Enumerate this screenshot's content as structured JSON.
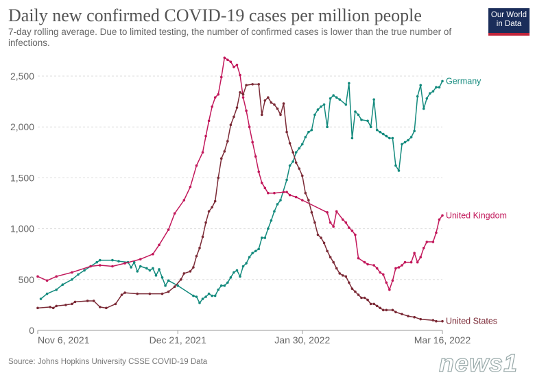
{
  "title": "Daily new confirmed COVID-19 cases per million people",
  "subtitle": "7-day rolling average. Due to limited testing, the number of confirmed cases is lower than the true number of infections.",
  "logo": {
    "line1": "Our World",
    "line2": "in Data"
  },
  "source": "Source: Johns Hopkins University CSSE COVID-19 Data",
  "watermark": "news1",
  "chart_data": {
    "type": "line",
    "title": "Daily new confirmed COVID-19 cases per million people",
    "xlabel": "",
    "ylabel": "",
    "x_unit": "days since Nov 6, 2021",
    "xlim": [
      0,
      130
    ],
    "ylim": [
      0,
      2500
    ],
    "yticks": [
      0,
      500,
      1000,
      1500,
      2000,
      2500
    ],
    "ytick_labels": [
      "0",
      "500",
      "1,000",
      "1,500",
      "2,000",
      "2,500"
    ],
    "xticks": [
      0,
      45,
      85,
      130
    ],
    "xtick_labels": [
      "Nov 6, 2021",
      "Dec 21, 2021",
      "Jan 30, 2022",
      "Mar 16, 2022"
    ],
    "grid": "horizontal dashed",
    "legend": "inline labels at line ends (right)",
    "series": [
      {
        "name": "Germany",
        "color": "#138a7d",
        "x": [
          1,
          3,
          6,
          8,
          11,
          13,
          15,
          17,
          19,
          20,
          24,
          26,
          29,
          30,
          31,
          32,
          33,
          35,
          36,
          37,
          38,
          39,
          40,
          41,
          42,
          45,
          50,
          51,
          52,
          53,
          54,
          55,
          56,
          57,
          58,
          59,
          60,
          61,
          62,
          63,
          64,
          65,
          66,
          67,
          68,
          69,
          70,
          71,
          72,
          73,
          74,
          75,
          76,
          77,
          78,
          80,
          81,
          82,
          83,
          84,
          85,
          86,
          87,
          88,
          89,
          90,
          91,
          92,
          93,
          94,
          95,
          96,
          97,
          99,
          100,
          101,
          102,
          103,
          104,
          106,
          107,
          108,
          109,
          110,
          111,
          112,
          113,
          114,
          115,
          116,
          117,
          118,
          119,
          120,
          121,
          122,
          123,
          124,
          125,
          126,
          127,
          128,
          129,
          130
        ],
        "y": [
          310,
          360,
          400,
          450,
          500,
          550,
          590,
          630,
          670,
          690,
          690,
          680,
          670,
          620,
          670,
          580,
          630,
          610,
          590,
          610,
          540,
          600,
          520,
          440,
          490,
          440,
          340,
          330,
          270,
          310,
          330,
          360,
          340,
          340,
          400,
          440,
          440,
          470,
          520,
          570,
          590,
          530,
          630,
          660,
          720,
          760,
          780,
          800,
          910,
          910,
          1000,
          1080,
          1170,
          1240,
          1280,
          1480,
          1620,
          1660,
          1750,
          1790,
          1830,
          1900,
          1950,
          1970,
          2120,
          2170,
          2200,
          2220,
          2000,
          2280,
          2310,
          2290,
          2270,
          2220,
          2430,
          1890,
          2150,
          2120,
          2070,
          2060,
          2000,
          2270,
          1970,
          1950,
          1930,
          1910,
          1890,
          1890,
          1620,
          1570,
          1830,
          1850,
          1870,
          1900,
          1960,
          2300,
          2410,
          2180,
          2280,
          2330,
          2350,
          2390,
          2390,
          2450
        ]
      },
      {
        "name": "United Kingdom",
        "color": "#c2185b",
        "x": [
          0,
          3,
          6,
          11,
          17,
          20,
          24,
          28,
          33,
          37,
          39,
          42,
          44,
          47,
          49,
          51,
          53,
          54,
          55,
          56,
          57,
          58,
          59,
          60,
          61,
          62,
          63,
          64,
          65,
          66,
          67,
          68,
          69,
          70,
          71,
          72,
          73,
          74,
          76,
          79,
          80,
          81,
          83,
          85,
          93,
          94,
          95,
          96,
          98,
          99,
          100,
          101,
          102,
          103,
          105,
          106,
          108,
          109,
          110,
          111,
          112,
          113,
          114,
          115,
          116,
          117,
          118,
          120,
          121,
          122,
          123,
          124,
          125,
          127,
          128,
          129,
          130
        ],
        "y": [
          530,
          490,
          530,
          570,
          630,
          640,
          630,
          660,
          700,
          750,
          840,
          990,
          1150,
          1280,
          1410,
          1620,
          1750,
          1910,
          2060,
          2200,
          2290,
          2320,
          2490,
          2680,
          2660,
          2640,
          2590,
          2610,
          2510,
          2290,
          2160,
          2000,
          1850,
          1710,
          1560,
          1450,
          1400,
          1350,
          1350,
          1360,
          1360,
          1330,
          1310,
          1280,
          1160,
          1060,
          1020,
          1170,
          1090,
          1060,
          1010,
          980,
          940,
          710,
          670,
          650,
          640,
          610,
          570,
          550,
          470,
          400,
          490,
          610,
          620,
          640,
          670,
          670,
          760,
          670,
          720,
          810,
          870,
          870,
          960,
          1090,
          1130
        ]
      },
      {
        "name": "United States",
        "color": "#7b2a36",
        "x": [
          0,
          4,
          5,
          6,
          9,
          11,
          12,
          16,
          18,
          20,
          22,
          25,
          27,
          28,
          32,
          36,
          40,
          42,
          44,
          46,
          47,
          49,
          50,
          51,
          52,
          53,
          54,
          55,
          56,
          57,
          58,
          59,
          60,
          61,
          62,
          63,
          64,
          65,
          66,
          67,
          69,
          71,
          72,
          73,
          74,
          75,
          76,
          77,
          78,
          79,
          80,
          81,
          82,
          83,
          84,
          85,
          86,
          87,
          88,
          89,
          90,
          91,
          92,
          93,
          94,
          95,
          96,
          97,
          98,
          99,
          100,
          101,
          102,
          103,
          104,
          105,
          106,
          107,
          108,
          109,
          110,
          111,
          112,
          114,
          115,
          117,
          119,
          121,
          123,
          127,
          128,
          130
        ],
        "y": [
          220,
          230,
          220,
          240,
          250,
          260,
          280,
          290,
          290,
          230,
          220,
          260,
          350,
          370,
          360,
          360,
          360,
          380,
          430,
          500,
          560,
          580,
          620,
          730,
          810,
          920,
          1060,
          1170,
          1210,
          1270,
          1500,
          1690,
          1760,
          1860,
          2020,
          2100,
          2190,
          2340,
          2320,
          2410,
          2420,
          2420,
          2120,
          2260,
          2290,
          2240,
          2220,
          2180,
          2120,
          2230,
          1950,
          1840,
          1750,
          1650,
          1590,
          1520,
          1350,
          1280,
          1160,
          1060,
          940,
          910,
          860,
          780,
          720,
          670,
          610,
          560,
          540,
          530,
          470,
          410,
          380,
          350,
          320,
          320,
          300,
          260,
          260,
          240,
          220,
          200,
          200,
          200,
          180,
          160,
          140,
          130,
          110,
          100,
          90,
          90
        ]
      }
    ]
  }
}
